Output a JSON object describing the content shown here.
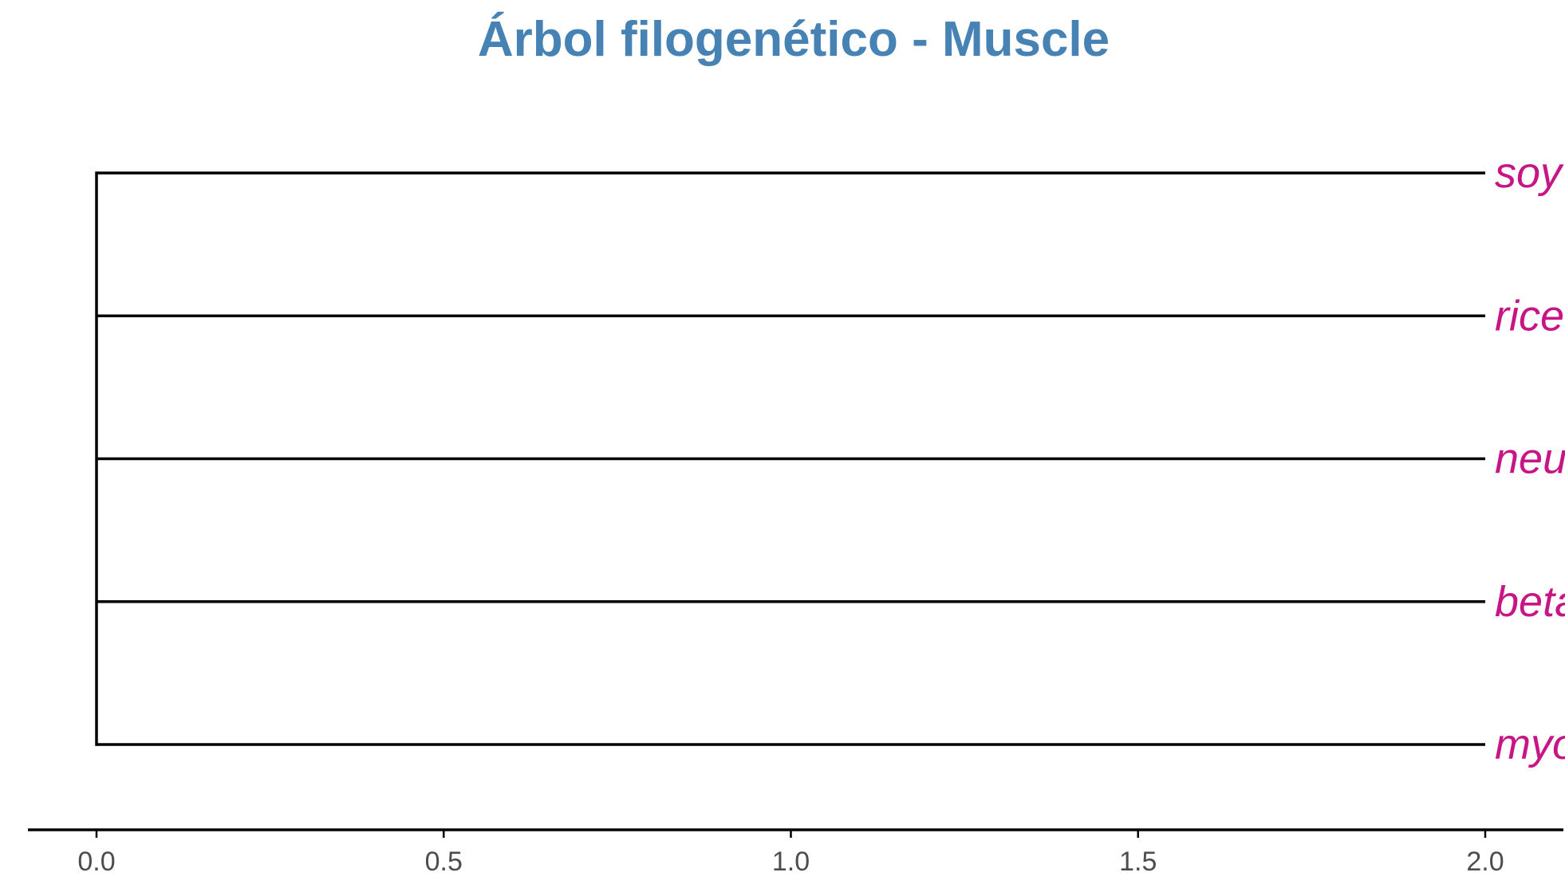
{
  "chart_data": {
    "type": "dendrogram",
    "title": "Árbol filogenético - Muscle",
    "xlabel": "",
    "ylabel": "",
    "xlim": [
      0,
      2.0
    ],
    "x_ticks": [
      {
        "value": 0.0,
        "label": "0.0"
      },
      {
        "value": 0.5,
        "label": "0.5"
      },
      {
        "value": 1.0,
        "label": "1.0"
      },
      {
        "value": 1.5,
        "label": "1.5"
      },
      {
        "value": 2.0,
        "label": "2.0"
      }
    ],
    "root_x": 0.0,
    "tips": [
      {
        "label": "soy",
        "branch_length": 2.0
      },
      {
        "label": "rice",
        "branch_length": 2.0
      },
      {
        "label": "neu",
        "branch_length": 2.0
      },
      {
        "label": "beta",
        "branch_length": 2.0
      },
      {
        "label": "myo",
        "branch_length": 2.0
      }
    ],
    "colors": {
      "title": "#4682B4",
      "tip_label": "#C71585",
      "branch": "#000000",
      "axis": "#000000",
      "tick_label": "#4d4d4d"
    }
  }
}
